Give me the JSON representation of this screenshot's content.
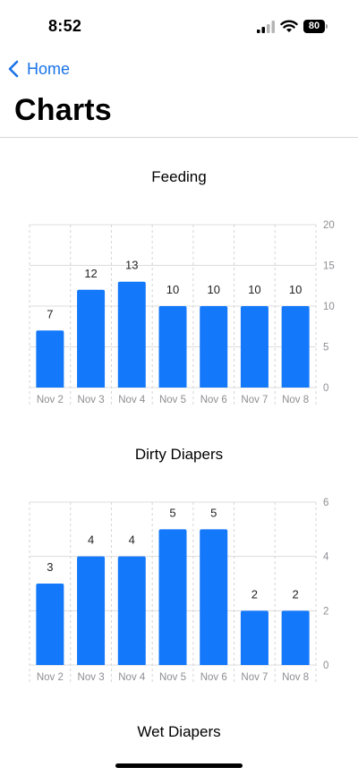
{
  "status_bar": {
    "time": "8:52",
    "battery": "80"
  },
  "nav": {
    "back_label": "Home",
    "title": "Charts"
  },
  "sections": [
    {
      "title": "Feeding"
    },
    {
      "title": "Dirty Diapers"
    },
    {
      "title": "Wet Diapers"
    }
  ],
  "chart_data": [
    {
      "type": "bar",
      "title": "Feeding",
      "categories": [
        "Nov 2",
        "Nov 3",
        "Nov 4",
        "Nov 5",
        "Nov 6",
        "Nov 7",
        "Nov 8"
      ],
      "values": [
        7,
        12,
        13,
        10,
        10,
        10,
        10
      ],
      "yticks": [
        0,
        5,
        10,
        15,
        20
      ],
      "ylim": [
        0,
        20
      ],
      "grid": true,
      "bar_color": "#1478fa"
    },
    {
      "type": "bar",
      "title": "Dirty Diapers",
      "categories": [
        "Nov 2",
        "Nov 3",
        "Nov 4",
        "Nov 5",
        "Nov 6",
        "Nov 7",
        "Nov 8"
      ],
      "values": [
        3,
        4,
        4,
        5,
        5,
        2,
        2
      ],
      "yticks": [
        0,
        2,
        4,
        6
      ],
      "ylim": [
        0,
        6
      ],
      "grid": true,
      "bar_color": "#1478fa"
    }
  ]
}
